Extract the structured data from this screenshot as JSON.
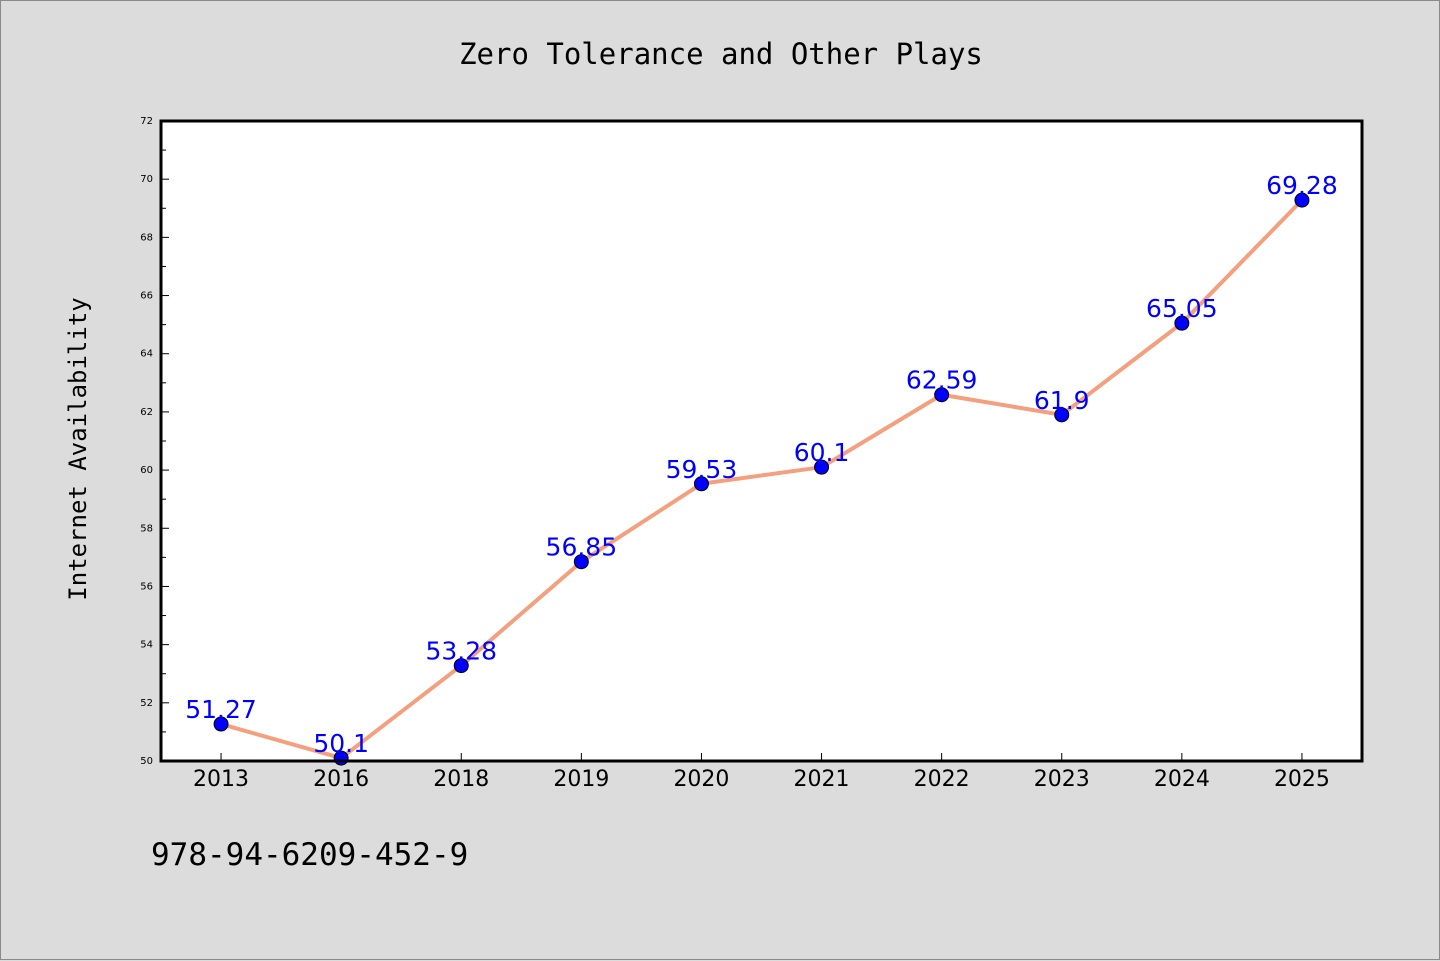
{
  "chart_data": {
    "type": "line",
    "title": "Zero Tolerance and Other Plays",
    "xlabel": "",
    "ylabel": "Internet Availability",
    "categories": [
      "2013",
      "2016",
      "2018",
      "2019",
      "2020",
      "2021",
      "2022",
      "2023",
      "2024",
      "2025"
    ],
    "values": [
      51.27,
      50.1,
      53.28,
      56.85,
      59.53,
      60.1,
      62.59,
      61.9,
      65.05,
      69.28
    ],
    "data_labels": [
      "51.27",
      "50.1",
      "53.28",
      "56.85",
      "59.53",
      "60.1",
      "62.59",
      "61.9",
      "65.05",
      "69.28"
    ],
    "ylim": [
      50,
      72
    ],
    "yticks": [
      "50",
      "52",
      "54",
      "56",
      "58",
      "60",
      "62",
      "64",
      "66",
      "68",
      "70",
      "72"
    ],
    "grid": false,
    "legend": "none",
    "colors": {
      "line": "#f4a07e",
      "marker": "#0000ff",
      "label": "#0000ff",
      "background": "#dcdcdc",
      "plot_background": "#ffffff"
    }
  },
  "footer_text": "978-94-6209-452-9"
}
